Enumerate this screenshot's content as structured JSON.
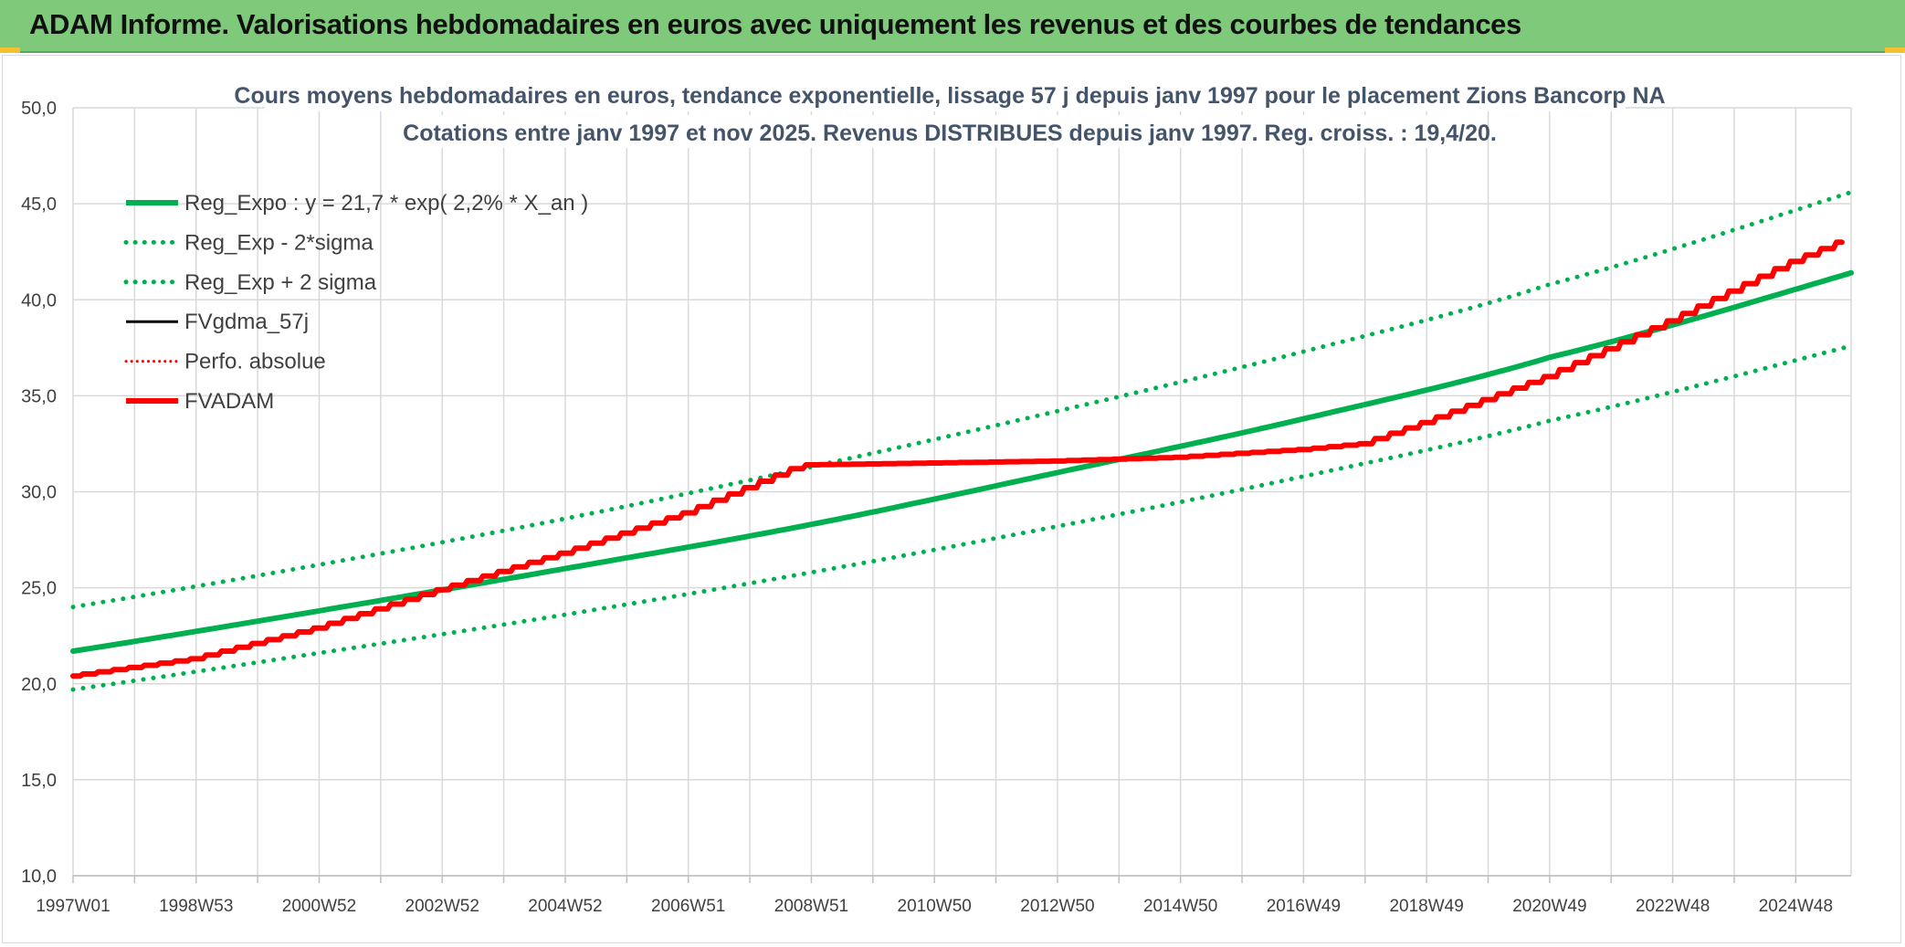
{
  "header": {
    "title": "ADAM Informe. Valorisations hebdomadaires en euros avec uniquement les revenus et des courbes de tendances"
  },
  "colors": {
    "banner": "#7fc97a",
    "green": "#00b050",
    "red": "#ff0000",
    "black": "#000000",
    "grid": "#d9d9d9",
    "title": "#44546a"
  },
  "chart_data": {
    "type": "line",
    "title_line1": "Cours moyens hebdomadaires en euros, tendance exponentielle, lissage 57 j depuis janv 1997 pour le placement Zions Bancorp NA",
    "title_line2": "Cotations entre janv 1997 et nov 2025. Revenus DISTRIBUES depuis janv 1997. Reg. croiss. : 19,4/20.",
    "xlabel": "",
    "ylabel": "",
    "x_range": [
      1997.0,
      2025.9
    ],
    "ylim": [
      10,
      50
    ],
    "y_ticks": [
      "10,0",
      "15,0",
      "20,0",
      "25,0",
      "30,0",
      "35,0",
      "40,0",
      "45,0",
      "50,0"
    ],
    "y_tick_values": [
      10,
      15,
      20,
      25,
      30,
      35,
      40,
      45,
      50
    ],
    "x_ticks": [
      "1997W01",
      "1998W53",
      "2000W52",
      "2002W52",
      "2004W52",
      "2006W51",
      "2008W51",
      "2010W50",
      "2012W50",
      "2014W50",
      "2016W49",
      "2018W49",
      "2020W49",
      "2022W48",
      "2024W48"
    ],
    "x_tick_values": [
      1997.0,
      1999.0,
      2001.0,
      2003.0,
      2005.0,
      2007.0,
      2009.0,
      2011.0,
      2013.0,
      2015.0,
      2017.0,
      2019.0,
      2021.0,
      2023.0,
      2025.0
    ],
    "grid": true,
    "legend_position": "top-left",
    "series": [
      {
        "name": "Reg_Expo : y = 21,7 * exp( 2,2% *  X_an )",
        "style": "solid",
        "color": "#00b050",
        "width": 6,
        "x": [
          1997.0,
          2001.0,
          2005.0,
          2009.0,
          2013.0,
          2017.0,
          2021.0,
          2025.9
        ],
        "y": [
          21.7,
          23.8,
          26.0,
          28.3,
          31.0,
          33.8,
          37.0,
          41.4
        ]
      },
      {
        "name": "Reg_Exp - 2*sigma",
        "style": "dotted",
        "color": "#00b050",
        "width": 5,
        "x": [
          1997.0,
          2001.0,
          2005.0,
          2009.0,
          2013.0,
          2017.0,
          2021.0,
          2025.9
        ],
        "y": [
          19.7,
          21.6,
          23.6,
          25.8,
          28.2,
          30.8,
          33.7,
          37.6
        ]
      },
      {
        "name": "Reg_Exp + 2 sigma",
        "style": "dotted",
        "color": "#00b050",
        "width": 5,
        "x": [
          1997.0,
          2001.0,
          2005.0,
          2009.0,
          2013.0,
          2017.0,
          2021.0,
          2025.9
        ],
        "y": [
          24.0,
          26.2,
          28.6,
          31.3,
          34.2,
          37.3,
          40.8,
          45.6
        ]
      },
      {
        "name": "FVgdma_57j",
        "style": "solid",
        "color": "#000000",
        "width": 2,
        "x": [
          1997.0,
          1999.0,
          2001.0,
          2003.0,
          2005.0,
          2007.0,
          2008.9,
          2011.0,
          2013.0,
          2015.0,
          2017.0,
          2018.0,
          2019.0,
          2021.0,
          2023.0,
          2025.0,
          2025.9
        ],
        "y": [
          20.4,
          21.3,
          22.9,
          24.9,
          26.8,
          28.9,
          31.4,
          31.5,
          31.6,
          31.8,
          32.2,
          32.5,
          33.6,
          36.0,
          38.9,
          42.0,
          43.2
        ]
      },
      {
        "name": "Perfo. absolue",
        "style": "dotted",
        "color": "#ff0000",
        "width": 3,
        "x": [],
        "y": []
      },
      {
        "name": "FVADAM",
        "style": "solid",
        "color": "#ff0000",
        "width": 6,
        "x": [
          1997.0,
          1999.0,
          2001.0,
          2003.0,
          2005.0,
          2007.0,
          2008.9,
          2011.0,
          2013.0,
          2015.0,
          2017.0,
          2018.0,
          2019.0,
          2021.0,
          2023.0,
          2025.0,
          2025.9
        ],
        "y": [
          20.4,
          21.3,
          22.9,
          24.9,
          26.8,
          28.9,
          31.4,
          31.5,
          31.6,
          31.8,
          32.2,
          32.5,
          33.6,
          36.0,
          38.9,
          42.0,
          43.2
        ]
      }
    ]
  }
}
